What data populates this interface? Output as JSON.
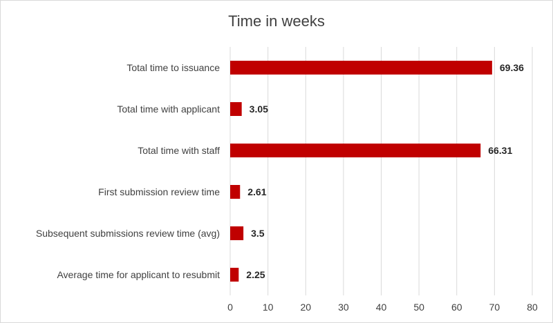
{
  "chart_data": {
    "type": "bar",
    "orientation": "horizontal",
    "title": "Time in weeks",
    "categories": [
      "Total time to issuance",
      "Total time with applicant",
      "Total time with staff",
      "First submission review time",
      "Subsequent submissions review time (avg)",
      "Average time for applicant to resubmit"
    ],
    "values": [
      69.36,
      3.05,
      66.31,
      2.61,
      3.5,
      2.25
    ],
    "data_labels": [
      "69.36",
      "3.05",
      "66.31",
      "2.61",
      "3.5",
      "2.25"
    ],
    "xlim": [
      0,
      80
    ],
    "x_ticks": [
      0,
      10,
      20,
      30,
      40,
      50,
      60,
      70,
      80
    ],
    "grid": true,
    "legend": "none",
    "bar_color": "#c00000"
  }
}
